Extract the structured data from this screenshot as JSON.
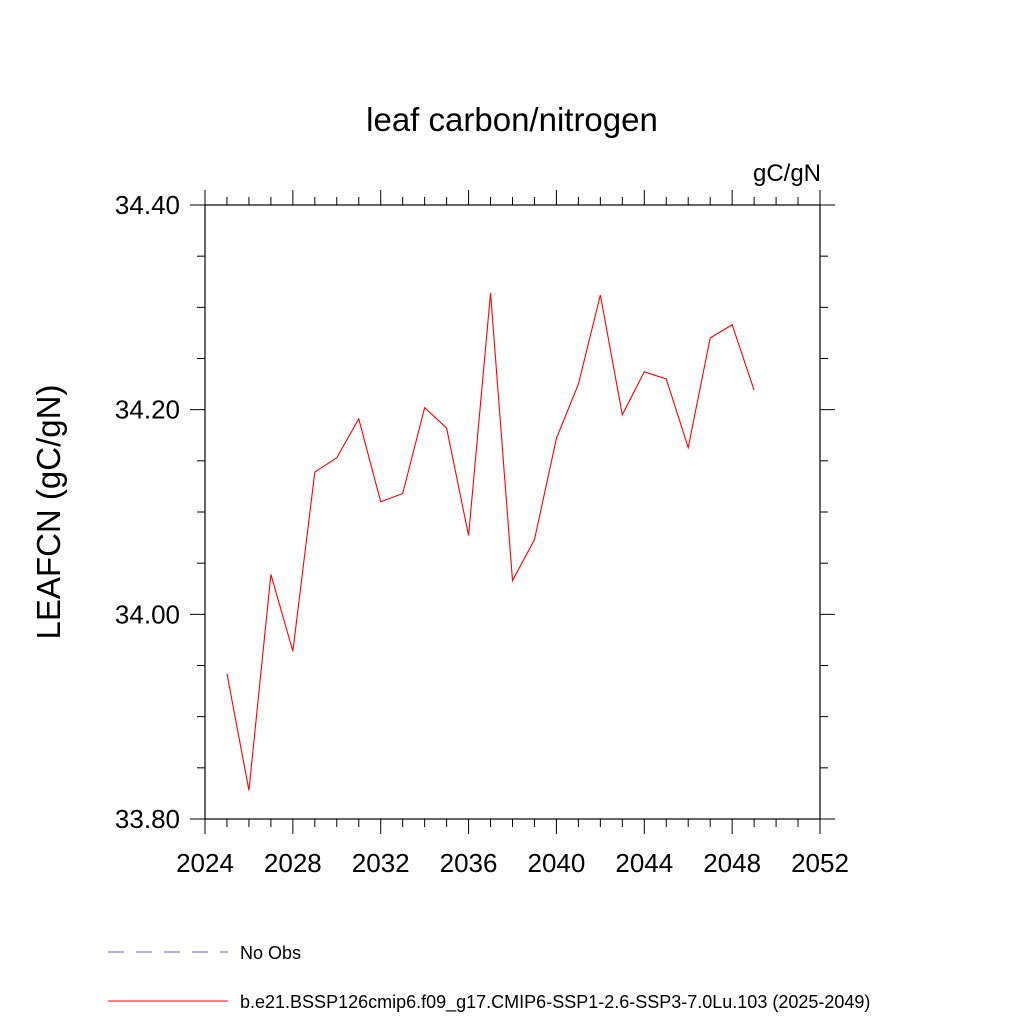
{
  "chart_data": {
    "type": "line",
    "title": "leaf carbon/nitrogen",
    "units_label": "gC/gN",
    "ylabel": "LEAFCN  (gC/gN)",
    "xlabel": "",
    "xlim": [
      2024,
      2052
    ],
    "ylim": [
      33.8,
      34.4
    ],
    "x_ticks": [
      2024,
      2028,
      2032,
      2036,
      2040,
      2044,
      2048,
      2052
    ],
    "x_tick_labels": [
      "2024",
      "2028",
      "2032",
      "2036",
      "2040",
      "2044",
      "2048",
      "2052"
    ],
    "y_ticks": [
      33.8,
      34.0,
      34.2,
      34.4
    ],
    "y_tick_labels": [
      "33.80",
      "34.00",
      "34.20",
      "34.40"
    ],
    "x_minor_step": 1,
    "x_major_step": 4,
    "y_minor_step": 0.05,
    "grid": false,
    "series": [
      {
        "name": "b.e21.BSSP126cmip6.f09_g17.CMIP6-SSP1-2.6-SSP3-7.0Lu.103 (2025-2049)",
        "color": "#ff0000",
        "style": "solid",
        "x": [
          2025,
          2026,
          2027,
          2028,
          2029,
          2030,
          2031,
          2032,
          2033,
          2034,
          2035,
          2036,
          2037,
          2038,
          2039,
          2040,
          2041,
          2042,
          2043,
          2044,
          2045,
          2046,
          2047,
          2048,
          2049
        ],
        "y": [
          33.942,
          33.828,
          34.039,
          33.964,
          34.139,
          34.153,
          34.191,
          34.11,
          34.118,
          34.202,
          34.182,
          34.077,
          34.314,
          34.033,
          34.073,
          34.172,
          34.225,
          34.312,
          34.195,
          34.237,
          34.23,
          34.163,
          34.27,
          34.283,
          34.219
        ]
      }
    ],
    "legend": {
      "placement": "bottom",
      "entries": [
        {
          "label": "No Obs",
          "color": "#6a5acd",
          "style": "dashed"
        },
        {
          "label": "b.e21.BSSP126cmip6.f09_g17.CMIP6-SSP1-2.6-SSP3-7.0Lu.103 (2025-2049)",
          "color": "#ff0000",
          "style": "solid"
        }
      ]
    }
  }
}
